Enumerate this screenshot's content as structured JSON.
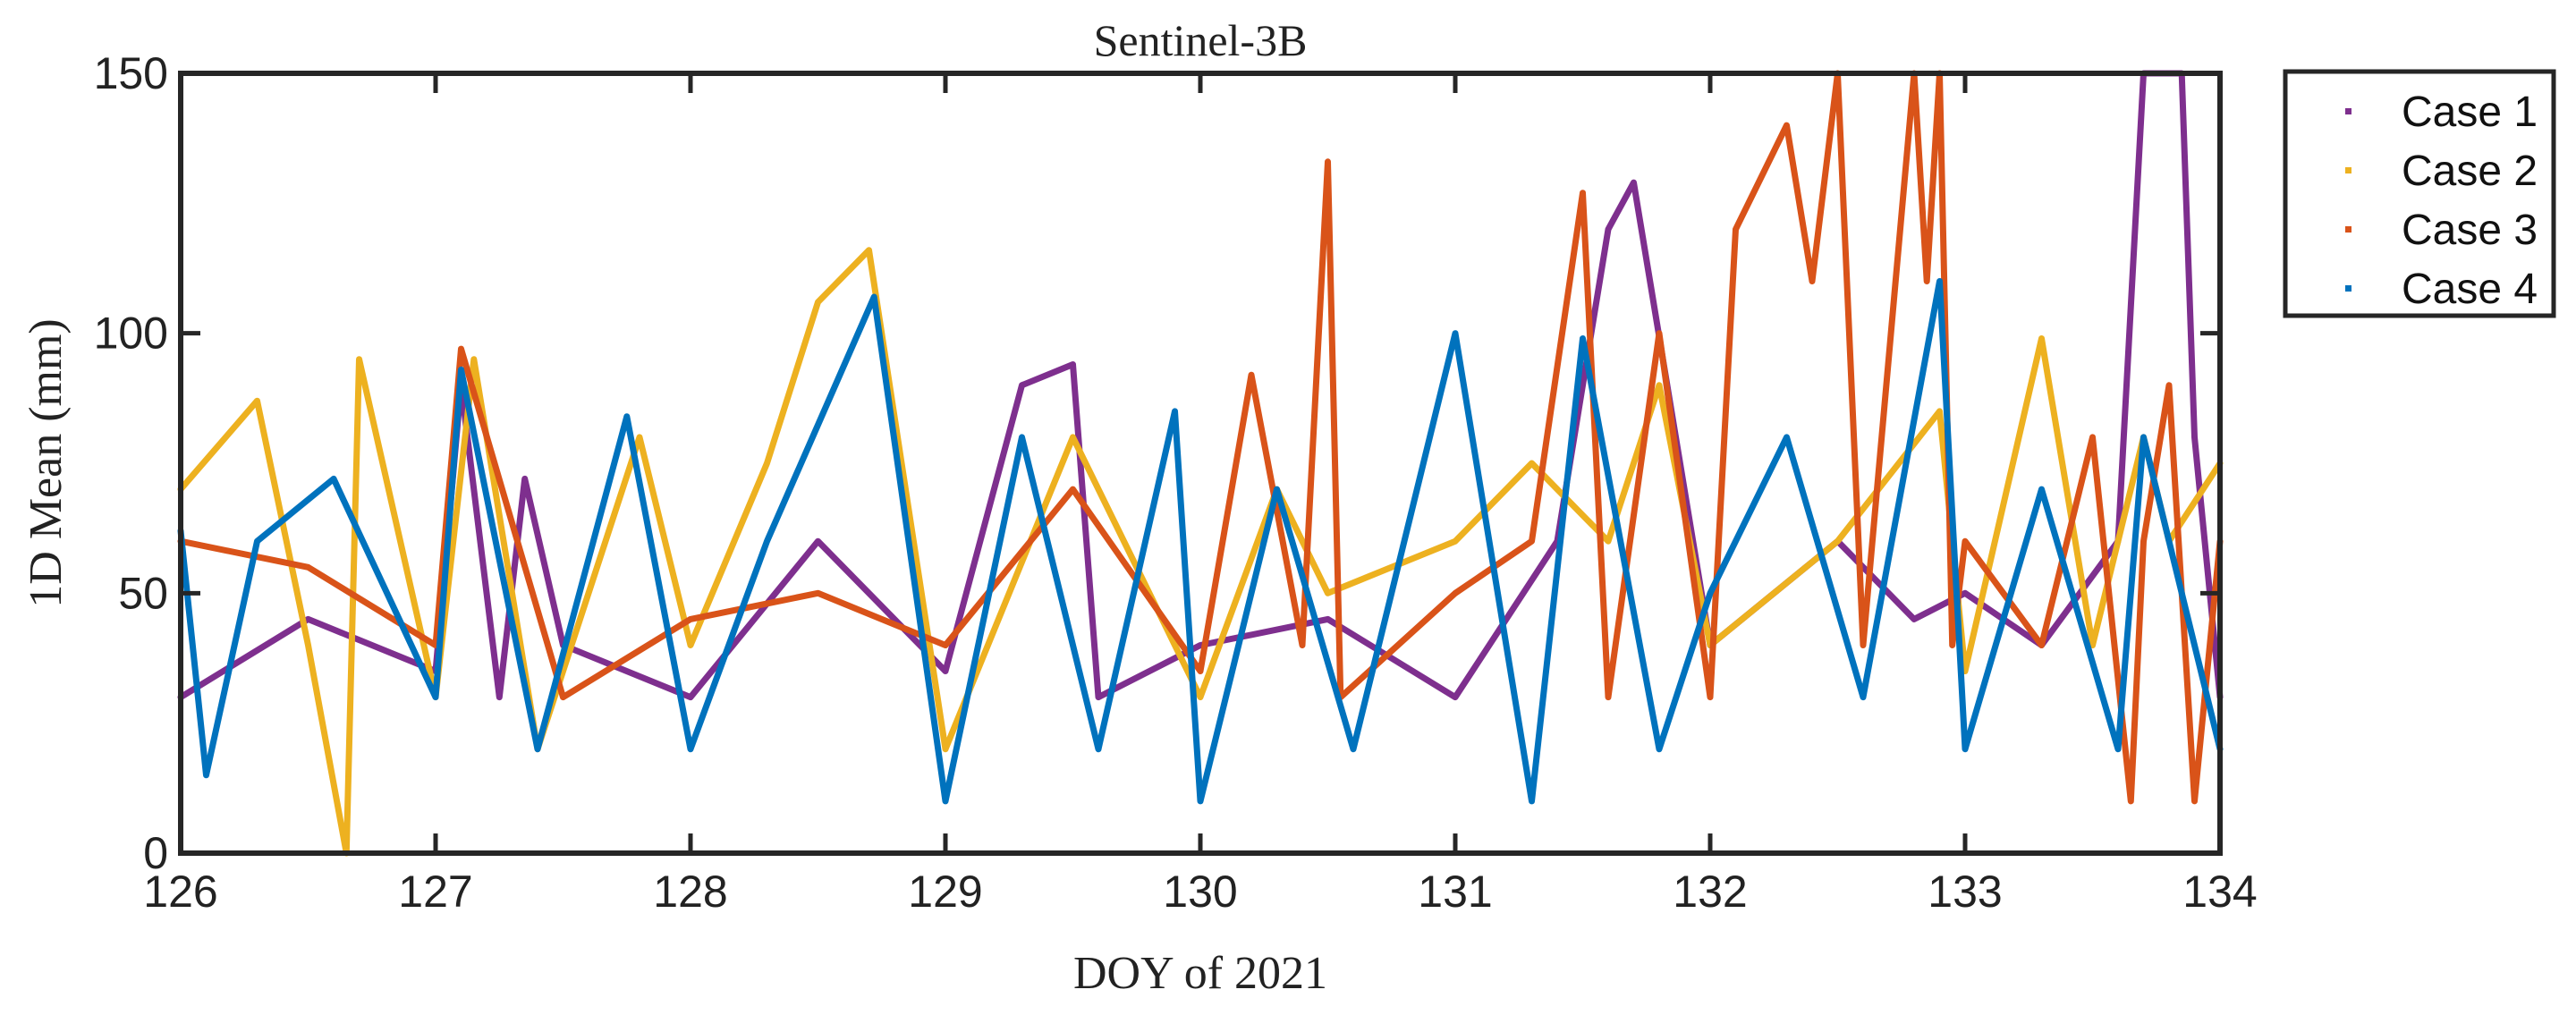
{
  "chart_data": {
    "type": "line",
    "title": "Sentinel-3B",
    "xlabel": "DOY of 2021",
    "ylabel": "1D Mean (mm)",
    "xlim": [
      126,
      134
    ],
    "ylim": [
      0,
      150
    ],
    "xticks": [
      126,
      127,
      128,
      129,
      130,
      131,
      132,
      133,
      134
    ],
    "yticks": [
      0,
      50,
      100,
      150
    ],
    "xtick_labels": [
      "126",
      "127",
      "128",
      "129",
      "130",
      "131",
      "132",
      "133",
      "134"
    ],
    "ytick_labels": [
      "0",
      "50",
      "100",
      "150"
    ],
    "grid": false,
    "legend_position": "outside-top-right",
    "series": [
      {
        "name": "Case 1",
        "color": "#7E2F8E",
        "x": [
          126.0,
          126.5,
          127.0,
          127.1,
          127.25,
          127.35,
          127.5,
          128.0,
          128.5,
          129.0,
          129.3,
          129.5,
          129.6,
          130.0,
          130.5,
          131.0,
          131.4,
          131.6,
          131.7,
          132.0,
          132.5,
          132.8,
          133.0,
          133.3,
          133.6,
          133.7,
          133.75,
          133.8,
          133.85,
          133.9,
          134.0
        ],
        "values": [
          30,
          45,
          35,
          90,
          30,
          72,
          40,
          30,
          60,
          35,
          90,
          94,
          30,
          40,
          45,
          30,
          60,
          120,
          129,
          40,
          60,
          45,
          50,
          40,
          60,
          150,
          150,
          150,
          150,
          80,
          30
        ]
      },
      {
        "name": "Case 2",
        "color": "#EDB120",
        "x": [
          126.0,
          126.3,
          126.5,
          126.65,
          126.7,
          127.0,
          127.15,
          127.4,
          127.8,
          128.0,
          128.3,
          128.5,
          128.7,
          129.0,
          129.5,
          130.0,
          130.3,
          130.5,
          131.0,
          131.3,
          131.6,
          131.8,
          132.0,
          132.5,
          132.9,
          133.0,
          133.3,
          133.5,
          133.7,
          133.8,
          134.0
        ],
        "values": [
          70,
          87,
          40,
          0,
          95,
          30,
          95,
          20,
          80,
          40,
          75,
          106,
          116,
          20,
          80,
          30,
          70,
          50,
          60,
          75,
          60,
          90,
          40,
          60,
          85,
          35,
          99,
          40,
          80,
          60,
          75
        ]
      },
      {
        "name": "Case 3",
        "color": "#D95319",
        "x": [
          126.0,
          126.5,
          127.0,
          127.1,
          127.5,
          128.0,
          128.5,
          129.0,
          129.5,
          130.0,
          130.2,
          130.4,
          130.5,
          130.55,
          131.0,
          131.3,
          131.5,
          131.6,
          131.8,
          132.0,
          132.1,
          132.2,
          132.3,
          132.4,
          132.5,
          132.6,
          132.8,
          132.85,
          132.9,
          132.95,
          133.0,
          133.3,
          133.5,
          133.65,
          133.7,
          133.8,
          133.9,
          134.0
        ],
        "values": [
          60,
          55,
          40,
          97,
          30,
          45,
          50,
          40,
          70,
          35,
          92,
          40,
          133,
          30,
          50,
          60,
          127,
          30,
          100,
          30,
          120,
          130,
          140,
          110,
          150,
          40,
          150,
          110,
          150,
          40,
          60,
          40,
          80,
          10,
          60,
          90,
          10,
          60
        ]
      },
      {
        "name": "Case 4",
        "color": "#0072BD",
        "x": [
          126.0,
          126.1,
          126.3,
          126.6,
          127.0,
          127.1,
          127.4,
          127.75,
          128.0,
          128.3,
          128.72,
          129.0,
          129.3,
          129.6,
          129.9,
          130.0,
          130.3,
          130.6,
          131.0,
          131.3,
          131.5,
          131.8,
          132.0,
          132.3,
          132.6,
          132.9,
          133.0,
          133.3,
          133.6,
          133.7,
          133.9,
          134.0
        ],
        "values": [
          62,
          15,
          60,
          72,
          30,
          93,
          20,
          84,
          20,
          60,
          107,
          10,
          80,
          20,
          85,
          10,
          70,
          20,
          100,
          10,
          99,
          20,
          50,
          80,
          30,
          110,
          20,
          70,
          20,
          80,
          40,
          20
        ]
      }
    ]
  }
}
